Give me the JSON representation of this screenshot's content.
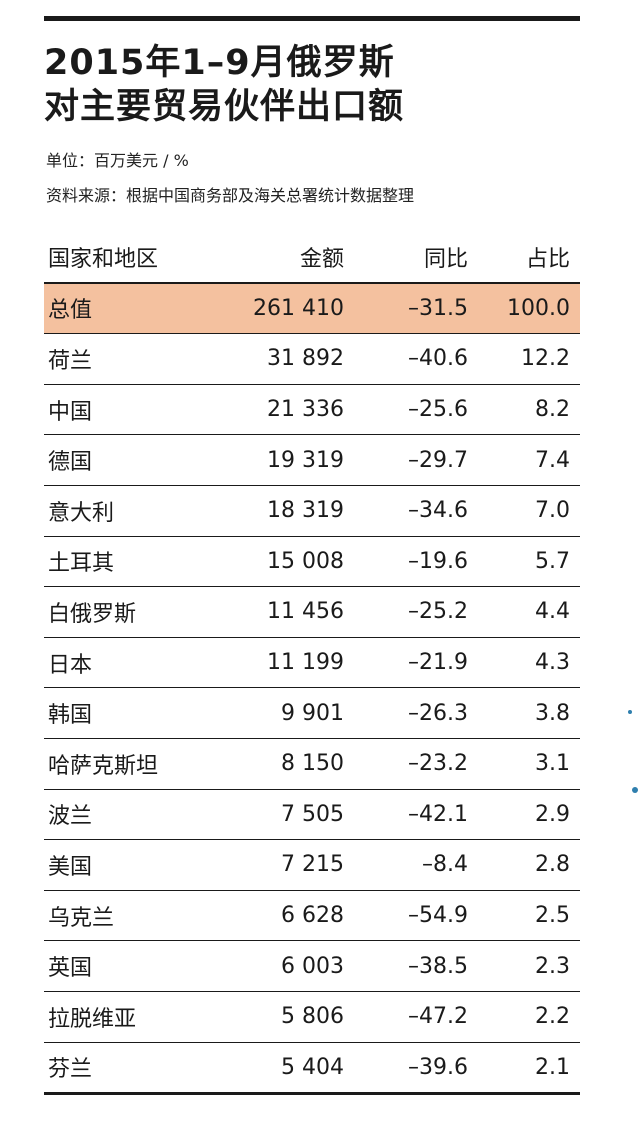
{
  "title_line1": "2015年1–9月俄罗斯",
  "title_line2": "对主要贸易伙伴出口额",
  "unit": "单位：百万美元 / %",
  "source": "资料来源：根据中国商务部及海关总署统计数据整理",
  "columns": [
    "国家和地区",
    "金额",
    "同比",
    "占比"
  ],
  "rows": [
    {
      "name": "总值",
      "amount": "261 410",
      "yoy": "–31.5",
      "share": "100.0"
    },
    {
      "name": "荷兰",
      "amount": "31 892",
      "yoy": "–40.6",
      "share": "12.2"
    },
    {
      "name": "中国",
      "amount": "21 336",
      "yoy": "–25.6",
      "share": "8.2"
    },
    {
      "name": "德国",
      "amount": "19 319",
      "yoy": "–29.7",
      "share": "7.4"
    },
    {
      "name": "意大利",
      "amount": "18 319",
      "yoy": "–34.6",
      "share": "7.0"
    },
    {
      "name": "土耳其",
      "amount": "15 008",
      "yoy": "–19.6",
      "share": "5.7"
    },
    {
      "name": "白俄罗斯",
      "amount": "11 456",
      "yoy": "–25.2",
      "share": "4.4"
    },
    {
      "name": "日本",
      "amount": "11 199",
      "yoy": "–21.9",
      "share": "4.3"
    },
    {
      "name": "韩国",
      "amount": "9 901",
      "yoy": "–26.3",
      "share": "3.8"
    },
    {
      "name": "哈萨克斯坦",
      "amount": "8 150",
      "yoy": "–23.2",
      "share": "3.1"
    },
    {
      "name": "波兰",
      "amount": "7 505",
      "yoy": "–42.1",
      "share": "2.9"
    },
    {
      "name": "美国",
      "amount": "7 215",
      "yoy": "–8.4",
      "share": "2.8"
    },
    {
      "name": "乌克兰",
      "amount": "6 628",
      "yoy": "–54.9",
      "share": "2.5"
    },
    {
      "name": "英国",
      "amount": "6 003",
      "yoy": "–38.5",
      "share": "2.3"
    },
    {
      "name": "拉脱维亚",
      "amount": "5 806",
      "yoy": "–47.2",
      "share": "2.2"
    },
    {
      "name": "芬兰",
      "amount": "5 404",
      "yoy": "–39.6",
      "share": "2.1"
    }
  ],
  "colors": {
    "highlight_row": "#f4c19f",
    "rule": "#1a1a1a",
    "margin_dot": "#2f7fae"
  }
}
